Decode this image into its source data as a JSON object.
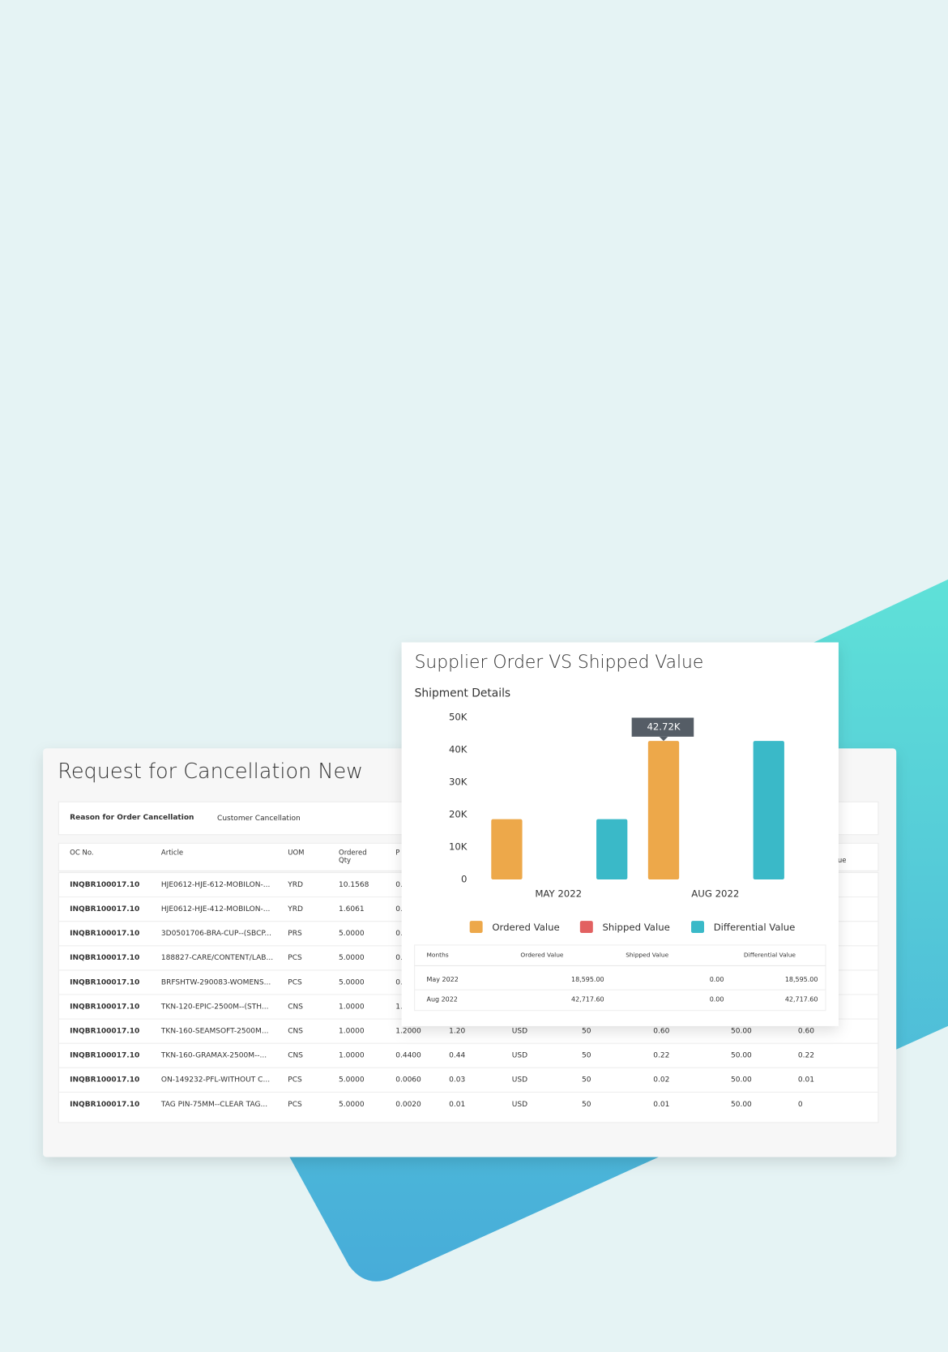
{
  "cancellation_form": {
    "title": "Request for Cancellation New",
    "reason_label": "Reason for Order Cancellation",
    "reason_value": "Customer Cancellation",
    "table": {
      "headers": [
        "OC No.",
        "Article",
        "UOM",
        [
          "Ordered",
          "Qty"
        ],
        "P",
        "ue"
      ],
      "rows": [
        [
          "INQBR100017.10",
          "HJE0612-HJE-612-MOBILON-...",
          "YRD",
          "10.1568",
          "0."
        ],
        [
          "INQBR100017.10",
          "HJE0612-HJE-412-MOBILON-...",
          "YRD",
          "1.6061",
          "0."
        ],
        [
          "INQBR100017.10",
          "3D0501706-BRA-CUP--(SBCP...",
          "PRS",
          "5.0000",
          "0."
        ],
        [
          "INQBR100017.10",
          "188827-CARE/CONTENT/LAB...",
          "PCS",
          "5.0000",
          "0."
        ],
        [
          "INQBR100017.10",
          "BRFSHTW-290083-WOMENS...",
          "PCS",
          "5.0000",
          "0."
        ],
        [
          "INQBR100017.10",
          "TKN-120-EPIC-2500M--(STH...",
          "CNS",
          "1.0000",
          "1."
        ],
        [
          "INQBR100017.10",
          "TKN-160-SEAMSOFT-2500M...",
          "CNS",
          "1.0000",
          "1.2000",
          "1.20",
          "USD",
          "50",
          "0.60",
          "50.00",
          "0.60"
        ],
        [
          "INQBR100017.10",
          "TKN-160-GRAMAX-2500M--...",
          "CNS",
          "1.0000",
          "0.4400",
          "0.44",
          "USD",
          "50",
          "0.22",
          "50.00",
          "0.22"
        ],
        [
          "INQBR100017.10",
          "ON-149232-PFL-WITHOUT C...",
          "PCS",
          "5.0000",
          "0.0060",
          "0.03",
          "USD",
          "50",
          "0.02",
          "50.00",
          "0.01"
        ],
        [
          "INQBR100017.10",
          "TAG PIN-75MM--CLEAR TAG...",
          "PCS",
          "5.0000",
          "0.0020",
          "0.01",
          "USD",
          "50",
          "0.01",
          "50.00",
          "0"
        ]
      ]
    }
  },
  "chart_data": {
    "type": "bar",
    "title": "Supplier Order VS Shipped Value",
    "subtitle": "Shipment Details",
    "categories": [
      "MAY 2022",
      "AUG 2022"
    ],
    "series": [
      {
        "name": "Ordered Value",
        "color": "#eda84a",
        "values": [
          18595,
          42717.6
        ]
      },
      {
        "name": "Shipped Value",
        "color": "#e26161",
        "values": [
          0,
          0
        ]
      },
      {
        "name": "Differential Value",
        "color": "#3ab9c8",
        "values": [
          18595,
          42717.6
        ]
      }
    ],
    "ylim": [
      0,
      50000
    ],
    "yticks": [
      0,
      {
        "value": 10000,
        "label": "10K"
      },
      {
        "value": 20000,
        "label": "20K"
      },
      {
        "value": 30000,
        "label": "30K"
      },
      {
        "value": 40000,
        "label": "40K"
      },
      {
        "value": 50000,
        "label": "50K"
      }
    ],
    "grid": false,
    "legend": "bottom",
    "tooltip": "42.72K",
    "table": {
      "headers": [
        "Months",
        "Ordered Value",
        "Shipped Value",
        "Differential Value"
      ],
      "rows": [
        [
          "May 2022",
          "18,595.00",
          "0.00",
          "18,595.00"
        ],
        [
          "Aug 2022",
          "42,717.60",
          "0.00",
          "42,717.60"
        ]
      ]
    }
  }
}
